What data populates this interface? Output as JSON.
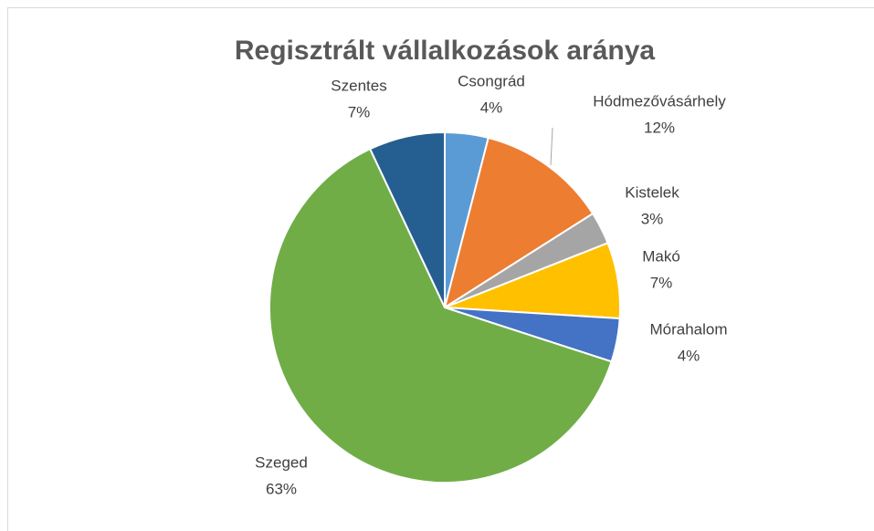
{
  "chart_data": {
    "type": "pie",
    "title": "Regisztrált vállalkozások aránya",
    "categories": [
      "Csongrád",
      "Hódmezővásárhely",
      "Kistelek",
      "Makó",
      "Mórahalom",
      "Szeged",
      "Szentes"
    ],
    "values": [
      4,
      12,
      3,
      7,
      4,
      63,
      7
    ],
    "value_labels": [
      "4%",
      "12%",
      "3%",
      "7%",
      "4%",
      "63%",
      "7%"
    ],
    "colors": [
      "#5b9bd5",
      "#ed7d31",
      "#a5a5a5",
      "#ffc000",
      "#4472c4",
      "#70ad47",
      "#255e91"
    ]
  }
}
